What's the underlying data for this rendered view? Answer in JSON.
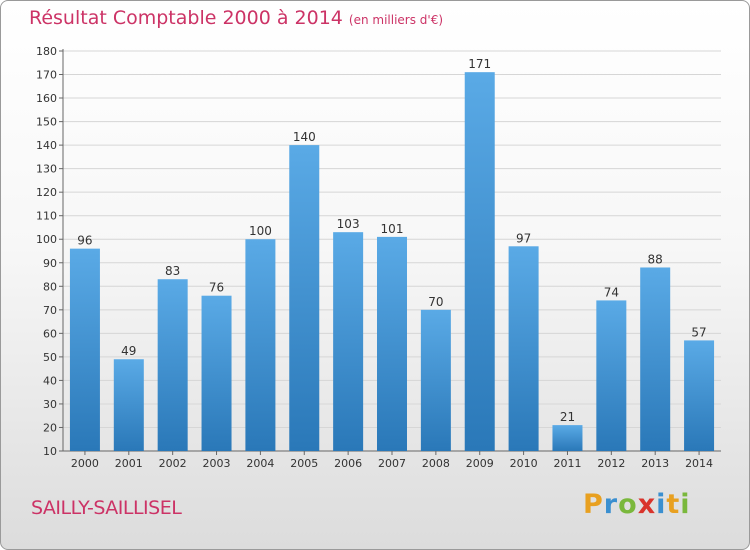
{
  "title": "Résultat Comptable 2000 à 2014",
  "subtitle": "(en milliers d'€)",
  "commune": "SAILLY-SAILLISEL",
  "brand": {
    "letters": [
      "P",
      "r",
      "o",
      "x",
      "i",
      "t",
      "i"
    ],
    "colors": [
      "#e8a020",
      "#3a8fd0",
      "#7ab83c",
      "#d9342c",
      "#3a8fd0",
      "#e8a020",
      "#7ab83c"
    ]
  },
  "colors": {
    "title": "#cc3366",
    "bar_top": "#5aaae6",
    "bar_bottom": "#2a78b8"
  },
  "chart_data": {
    "type": "bar",
    "title": "Résultat Comptable 2000 à 2014",
    "xlabel": "",
    "ylabel": "",
    "ylim": [
      10,
      180
    ],
    "yticks": [
      10,
      20,
      30,
      40,
      50,
      60,
      70,
      80,
      90,
      100,
      110,
      120,
      130,
      140,
      150,
      160,
      170,
      180
    ],
    "grid": true,
    "categories": [
      "2000",
      "2001",
      "2002",
      "2003",
      "2004",
      "2005",
      "2006",
      "2007",
      "2008",
      "2009",
      "2010",
      "2011",
      "2012",
      "2013",
      "2014"
    ],
    "values": [
      96,
      49,
      83,
      76,
      100,
      140,
      103,
      101,
      70,
      171,
      97,
      21,
      74,
      88,
      57
    ]
  }
}
